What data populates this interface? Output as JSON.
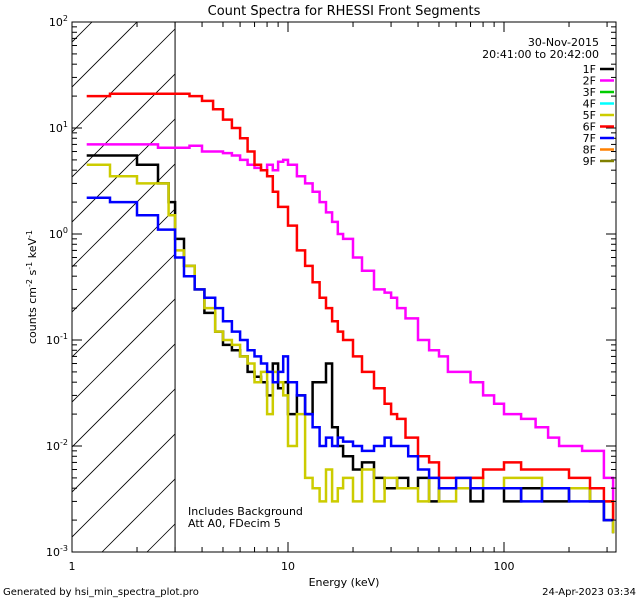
{
  "chart_data": {
    "type": "line",
    "title": "Count Spectra for RHESSI Front Segments",
    "xlabel": "Energy (keV)",
    "ylabel_parts": {
      "base": "counts cm",
      "exp1": "-2",
      "mid1": " s",
      "exp2": "-1",
      "mid2": " keV",
      "exp3": "-1"
    },
    "xscale": "log",
    "yscale": "log",
    "xlim": [
      1.0,
      330.0
    ],
    "ylim": [
      0.001,
      100.0
    ],
    "x_ticks": [
      {
        "value": 1,
        "label": "1"
      },
      {
        "value": 10,
        "label": "10"
      },
      {
        "value": 100,
        "label": "100"
      }
    ],
    "y_ticks": [
      {
        "value": 0.001,
        "base": "10",
        "exp": "-3"
      },
      {
        "value": 0.01,
        "base": "10",
        "exp": "-2"
      },
      {
        "value": 0.1,
        "base": "10",
        "exp": "-1"
      },
      {
        "value": 1,
        "base": "10",
        "exp": "0"
      },
      {
        "value": 10,
        "base": "10",
        "exp": "1"
      },
      {
        "value": 100,
        "base": "10",
        "exp": "2"
      }
    ],
    "shaded_region": {
      "x_max": 3.0,
      "style": "diagonal-hatch"
    },
    "date_text": "30-Nov-2015",
    "time_range_text": "20:41:00 to 20:42:00",
    "notes": [
      "Includes Background",
      "Att A0, FDecim 5"
    ],
    "legend_position": "top-right",
    "series": [
      {
        "name": "1F",
        "color": "#000000",
        "x": [
          1.17,
          1.5,
          2.0,
          2.5,
          2.8,
          3.0,
          3.3,
          3.7,
          4.1,
          4.6,
          5.0,
          5.5,
          6.0,
          6.5,
          7.0,
          7.5,
          8.0,
          8.5,
          9.0,
          9.5,
          10,
          11,
          12,
          13,
          14,
          15,
          16,
          17,
          18,
          20,
          22,
          25,
          28,
          32,
          36,
          40,
          45,
          50,
          60,
          70,
          80,
          100,
          120,
          150,
          200,
          250,
          290,
          320
        ],
        "y": [
          5.5,
          5.5,
          4.5,
          3.0,
          2.0,
          0.9,
          0.5,
          0.3,
          0.18,
          0.12,
          0.09,
          0.08,
          0.07,
          0.05,
          0.045,
          0.04,
          0.03,
          0.06,
          0.035,
          0.04,
          0.02,
          0.03,
          0.02,
          0.04,
          0.04,
          0.06,
          0.015,
          0.01,
          0.008,
          0.006,
          0.007,
          0.005,
          0.004,
          0.005,
          0.004,
          0.005,
          0.003,
          0.004,
          0.004,
          0.003,
          0.004,
          0.003,
          0.004,
          0.003,
          0.004,
          0.003,
          0.002,
          0.0015
        ]
      },
      {
        "name": "2F",
        "color": "#ff00ff",
        "x": [
          1.17,
          1.5,
          2.0,
          2.5,
          3.0,
          3.5,
          4.0,
          4.5,
          5.0,
          5.5,
          6.0,
          6.5,
          7.0,
          7.5,
          8.0,
          8.5,
          9.0,
          9.5,
          10,
          11,
          12,
          13,
          14,
          15,
          16,
          17,
          18,
          20,
          22,
          25,
          28,
          30,
          32,
          35,
          40,
          45,
          50,
          55,
          60,
          70,
          80,
          90,
          100,
          120,
          140,
          160,
          180,
          200,
          230,
          260,
          290,
          320
        ],
        "y": [
          7.0,
          7.0,
          7.0,
          6.5,
          6.5,
          6.8,
          6.0,
          6.0,
          5.8,
          5.5,
          5.0,
          4.5,
          4.2,
          4.0,
          4.5,
          4.0,
          4.8,
          5.0,
          4.5,
          3.5,
          3.0,
          2.5,
          2.0,
          1.6,
          1.3,
          1.0,
          0.9,
          0.6,
          0.45,
          0.3,
          0.28,
          0.25,
          0.2,
          0.16,
          0.1,
          0.08,
          0.07,
          0.05,
          0.05,
          0.04,
          0.03,
          0.025,
          0.02,
          0.018,
          0.015,
          0.012,
          0.01,
          0.01,
          0.009,
          0.009,
          0.005,
          0.003
        ]
      },
      {
        "name": "3F",
        "color": "#00cc00",
        "x": [],
        "y": []
      },
      {
        "name": "4F",
        "color": "#00ffff",
        "x": [],
        "y": []
      },
      {
        "name": "5F",
        "color": "#cccc00",
        "x": [
          1.17,
          1.5,
          2.0,
          2.5,
          2.8,
          3.0,
          3.3,
          3.7,
          4.1,
          4.6,
          5.0,
          5.5,
          6.0,
          6.5,
          7.0,
          7.5,
          8.0,
          8.5,
          9.0,
          9.5,
          10,
          11,
          12,
          13,
          14,
          15,
          16,
          17,
          18,
          20,
          22,
          25,
          28,
          32,
          36,
          40,
          45,
          50,
          60,
          70,
          80,
          100,
          120,
          150,
          200,
          250,
          290,
          320
        ],
        "y": [
          4.5,
          3.5,
          3.0,
          3.0,
          1.5,
          0.7,
          0.5,
          0.3,
          0.2,
          0.12,
          0.1,
          0.09,
          0.07,
          0.06,
          0.04,
          0.05,
          0.02,
          0.05,
          0.04,
          0.03,
          0.01,
          0.02,
          0.005,
          0.004,
          0.003,
          0.006,
          0.003,
          0.004,
          0.005,
          0.003,
          0.006,
          0.003,
          0.005,
          0.004,
          0.004,
          0.003,
          0.005,
          0.003,
          0.004,
          0.005,
          0.004,
          0.005,
          0.005,
          0.004,
          0.004,
          0.003,
          0.003,
          0.0015
        ]
      },
      {
        "name": "6F",
        "color": "#ff0000",
        "x": [
          1.17,
          1.5,
          2.0,
          2.5,
          3.0,
          3.5,
          4.0,
          4.5,
          5.0,
          5.5,
          6.0,
          6.5,
          7.0,
          7.5,
          8.0,
          8.5,
          9.0,
          10,
          11,
          12,
          13,
          14,
          15,
          16,
          17,
          18,
          20,
          22,
          25,
          28,
          30,
          32,
          35,
          40,
          45,
          50,
          60,
          70,
          80,
          100,
          120,
          150,
          200,
          250,
          290,
          320
        ],
        "y": [
          20,
          21,
          21,
          21,
          21,
          20,
          18,
          15,
          12,
          10,
          8,
          6,
          4.5,
          4.0,
          3.5,
          2.5,
          1.8,
          1.2,
          0.7,
          0.5,
          0.35,
          0.25,
          0.2,
          0.15,
          0.12,
          0.1,
          0.07,
          0.05,
          0.035,
          0.025,
          0.02,
          0.018,
          0.012,
          0.008,
          0.007,
          0.005,
          0.005,
          0.005,
          0.006,
          0.007,
          0.006,
          0.006,
          0.005,
          0.004,
          0.003,
          0.002
        ]
      },
      {
        "name": "7F",
        "color": "#0000ff",
        "x": [
          1.17,
          1.5,
          2.0,
          2.5,
          3.0,
          3.3,
          3.7,
          4.1,
          4.6,
          5.0,
          5.5,
          6.0,
          6.5,
          7.0,
          7.5,
          8.0,
          8.5,
          9.0,
          9.5,
          10,
          11,
          12,
          13,
          14,
          15,
          16,
          17,
          18,
          20,
          22,
          25,
          28,
          30,
          32,
          36,
          40,
          45,
          50,
          60,
          70,
          80,
          100,
          120,
          150,
          200,
          250,
          290,
          320
        ],
        "y": [
          2.2,
          2.0,
          1.5,
          1.1,
          0.6,
          0.4,
          0.3,
          0.25,
          0.2,
          0.15,
          0.12,
          0.1,
          0.08,
          0.07,
          0.06,
          0.05,
          0.04,
          0.05,
          0.07,
          0.04,
          0.03,
          0.02,
          0.015,
          0.01,
          0.012,
          0.01,
          0.012,
          0.011,
          0.01,
          0.009,
          0.01,
          0.012,
          0.01,
          0.01,
          0.008,
          0.006,
          0.005,
          0.004,
          0.005,
          0.004,
          0.004,
          0.004,
          0.003,
          0.004,
          0.003,
          0.003,
          0.002,
          0.002
        ]
      },
      {
        "name": "8F",
        "color": "#ff8000",
        "x": [],
        "y": []
      },
      {
        "name": "9F",
        "color": "#808000",
        "x": [],
        "y": []
      }
    ]
  },
  "footer": {
    "generated_by": "Generated by hsi_min_spectra_plot.pro",
    "timestamp": "24-Apr-2023 03:34"
  }
}
